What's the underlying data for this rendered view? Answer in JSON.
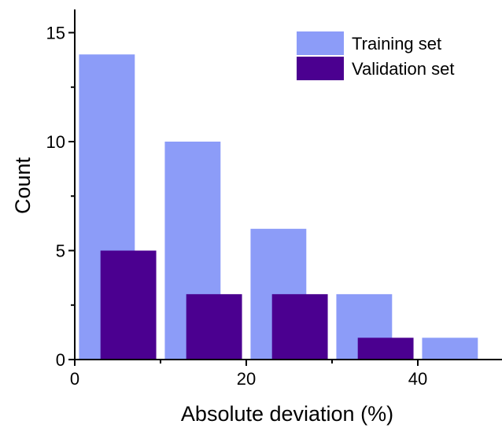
{
  "chart_data": {
    "type": "bar",
    "title": "",
    "xlabel": "Absolute deviation (%)",
    "ylabel": "Count",
    "xlim": [
      0,
      50
    ],
    "ylim": [
      0,
      16
    ],
    "x_ticks": [
      0,
      20,
      40
    ],
    "y_ticks": [
      0,
      5,
      10,
      15
    ],
    "grid": false,
    "legend_position": "top-right",
    "series": [
      {
        "name": "Training set",
        "color": "#8c9cf8",
        "bins": [
          {
            "x0": 0.5,
            "x1": 7,
            "value": 14
          },
          {
            "x0": 10.5,
            "x1": 17,
            "value": 10
          },
          {
            "x0": 20.5,
            "x1": 27,
            "value": 6
          },
          {
            "x0": 30.5,
            "x1": 37,
            "value": 3
          },
          {
            "x0": 40.5,
            "x1": 47,
            "value": 1
          }
        ]
      },
      {
        "name": "Validation set",
        "color": "#4b0090",
        "bins": [
          {
            "x0": 3,
            "x1": 9.5,
            "value": 5
          },
          {
            "x0": 13,
            "x1": 19.5,
            "value": 3
          },
          {
            "x0": 23,
            "x1": 29.5,
            "value": 3
          },
          {
            "x0": 33,
            "x1": 39.5,
            "value": 1
          }
        ]
      }
    ]
  }
}
